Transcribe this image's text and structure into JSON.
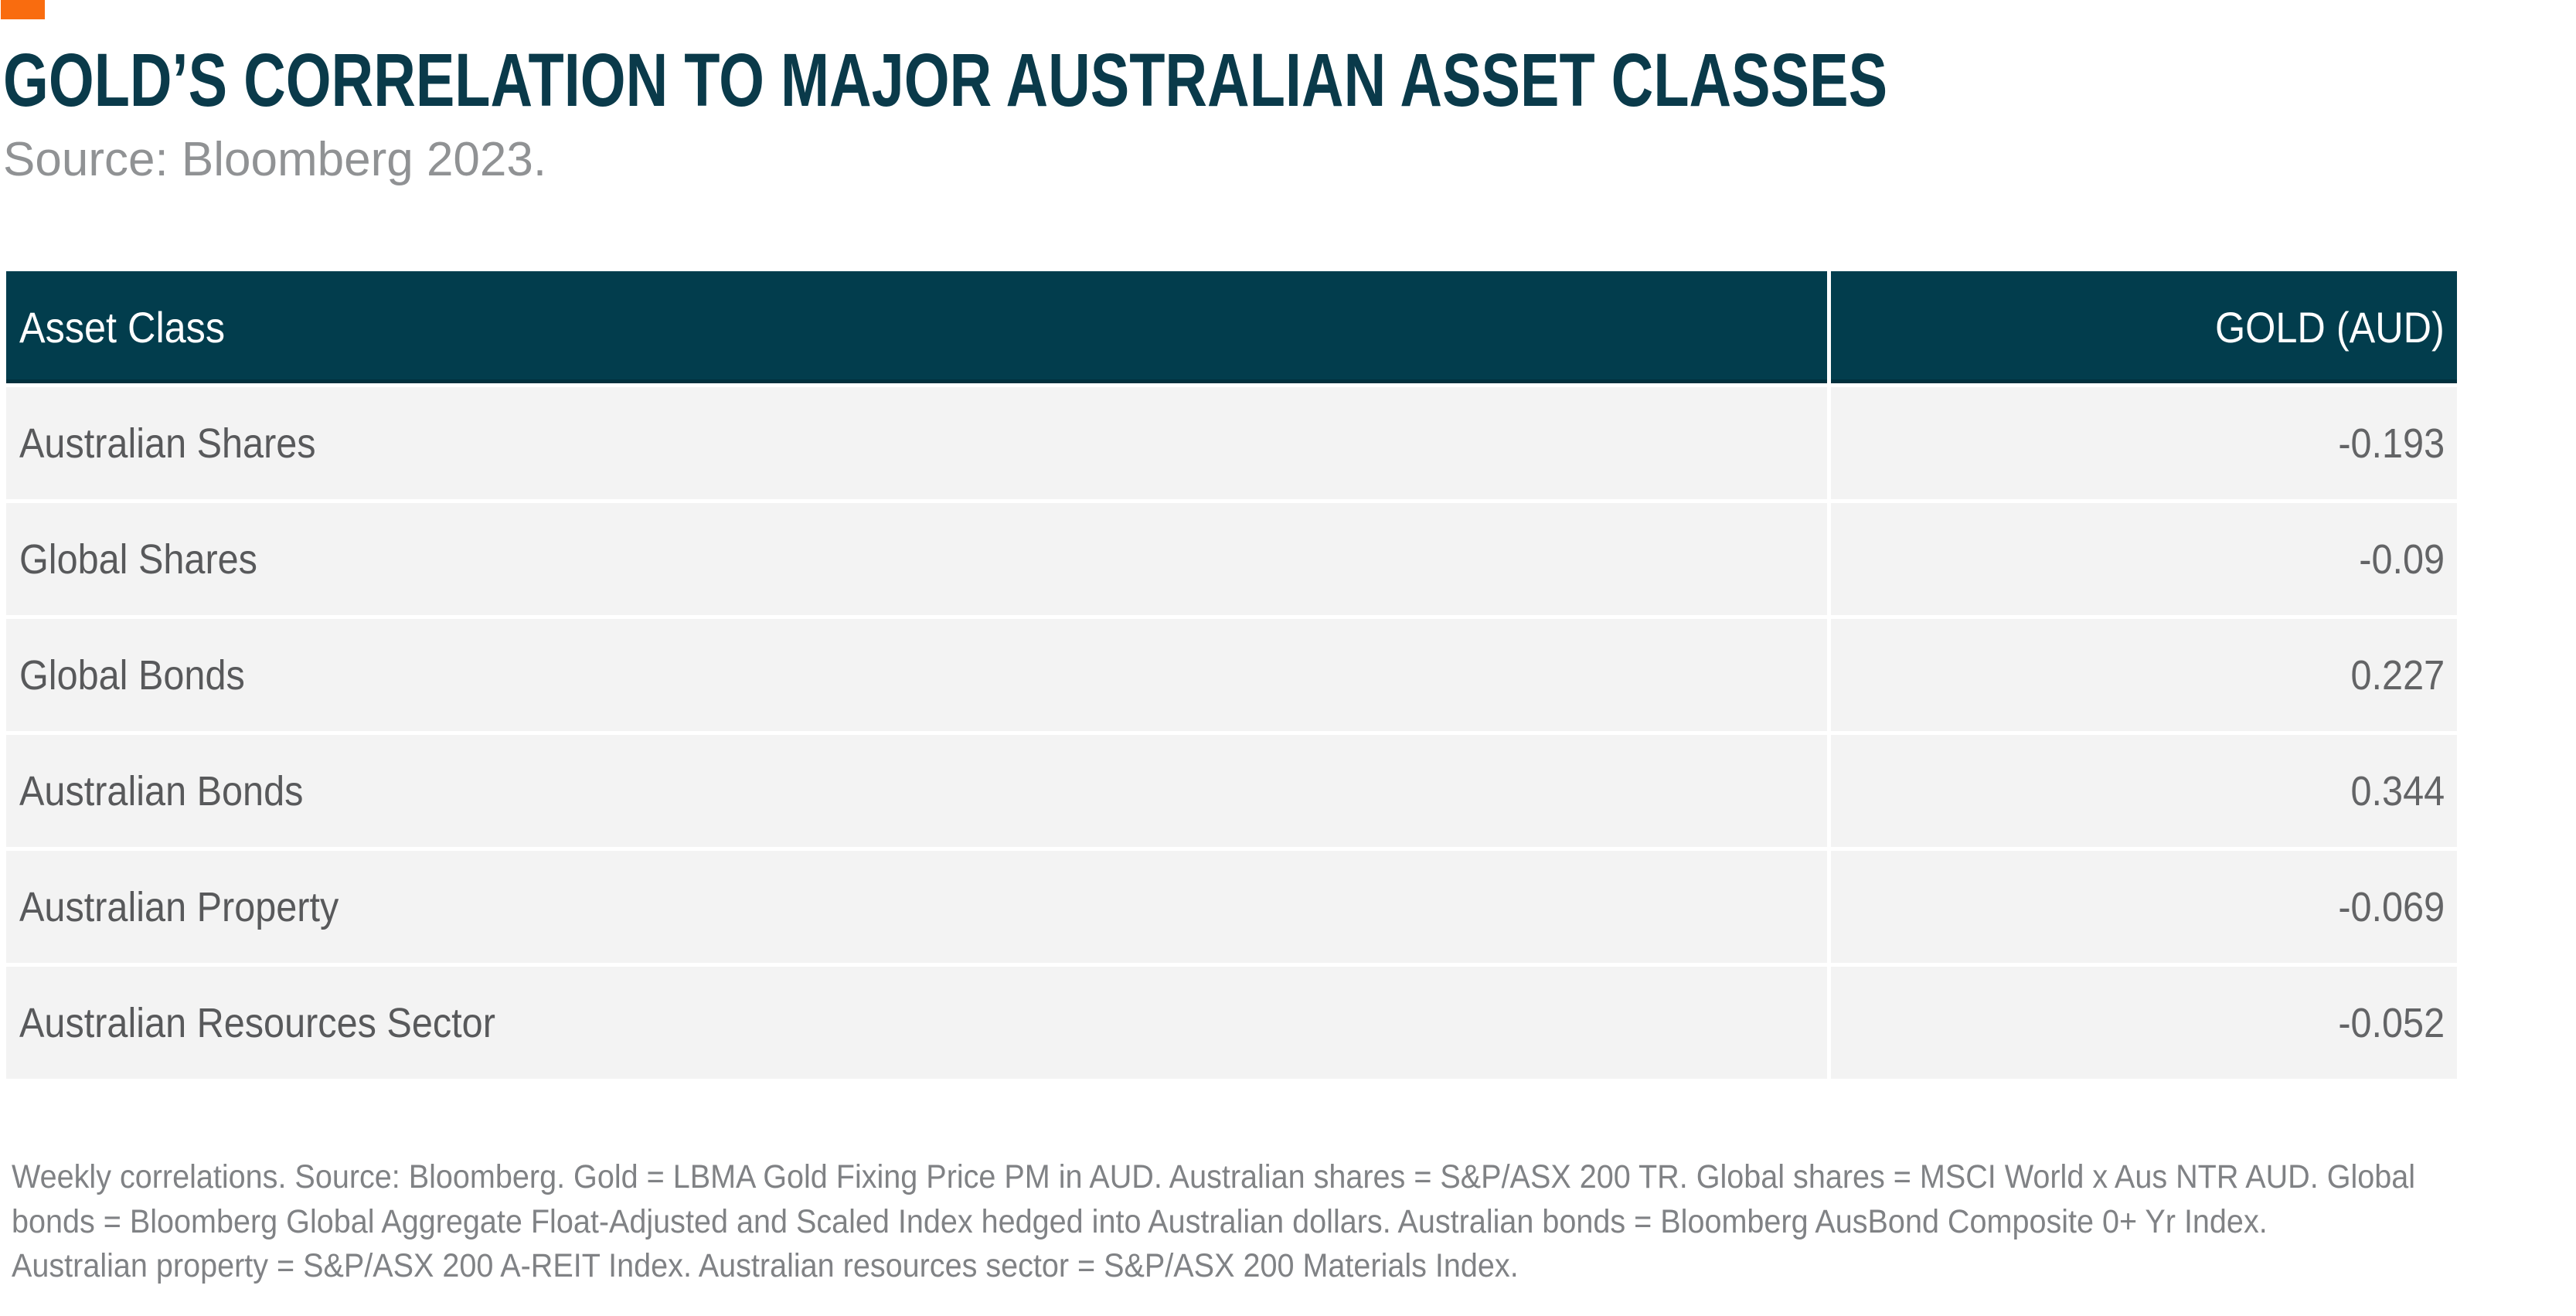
{
  "theme": {
    "accent_orange": "#F96C0F",
    "title_teal": "#0A3A4A",
    "header_bg": "#023D4D",
    "header_text": "#FFFFFF",
    "row_bg": "#F3F3F3",
    "label_gray": "#58595B",
    "value_gray": "#636466",
    "source_gray": "#909294",
    "footnote_gray": "#808285"
  },
  "header": {
    "title": "GOLD’S CORRELATION TO MAJOR AUSTRALIAN ASSET CLASSES",
    "source": "Source: Bloomberg 2023."
  },
  "table": {
    "columns": [
      "Asset Class",
      "GOLD (AUD)"
    ],
    "rows": [
      {
        "asset_class": "Australian Shares",
        "gold_aud": "-0.193"
      },
      {
        "asset_class": "Global Shares",
        "gold_aud": "-0.09"
      },
      {
        "asset_class": "Global Bonds",
        "gold_aud": "0.227"
      },
      {
        "asset_class": "Australian Bonds",
        "gold_aud": "0.344"
      },
      {
        "asset_class": "Australian Property",
        "gold_aud": "-0.069"
      },
      {
        "asset_class": "Australian Resources Sector",
        "gold_aud": "-0.052"
      }
    ]
  },
  "footnote": {
    "lines": [
      "Weekly correlations. Source: Bloomberg. Gold = LBMA Gold Fixing Price PM in AUD. Australian shares = S&P/ASX 200 TR. Global shares = MSCI World x Aus NTR AUD. Global",
      "bonds = Bloomberg Global Aggregate Float-Adjusted and Scaled Index hedged into Australian dollars. Australian bonds = Bloomberg AusBond Composite 0+ Yr Index.",
      "Australian property = S&P/ASX 200 A-REIT Index. Australian resources sector = S&P/ASX 200 Materials Index."
    ]
  },
  "chart_data": {
    "type": "table",
    "title": "GOLD’S CORRELATION TO MAJOR AUSTRALIAN ASSET CLASSES",
    "subtitle": "Source: Bloomberg 2023.",
    "columns": [
      "Asset Class",
      "GOLD (AUD)"
    ],
    "categories": [
      "Australian Shares",
      "Global Shares",
      "Global Bonds",
      "Australian Bonds",
      "Australian Property",
      "Australian Resources Sector"
    ],
    "values": [
      -0.193,
      -0.09,
      0.227,
      0.344,
      -0.069,
      -0.052
    ]
  }
}
